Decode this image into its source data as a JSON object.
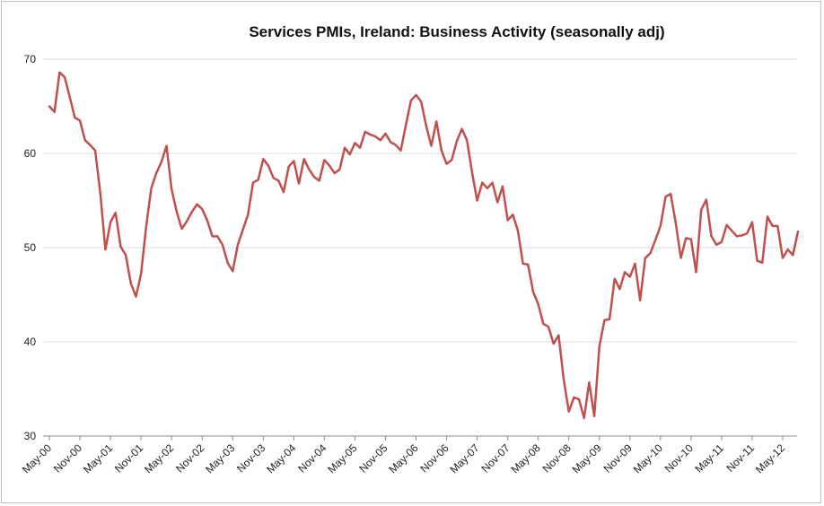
{
  "chart_data": {
    "type": "line",
    "title": "Services PMIs, Ireland: Business Activity (seasonally adj)",
    "xlabel": "",
    "ylabel": "",
    "ylim": [
      30,
      70
    ],
    "yticks": [
      30,
      40,
      50,
      60,
      70
    ],
    "xtick_labels": [
      "May-00",
      "Nov-00",
      "May-01",
      "Nov-01",
      "May-02",
      "Nov-02",
      "May-03",
      "Nov-03",
      "May-04",
      "Nov-04",
      "May-05",
      "Nov-05",
      "May-06",
      "Nov-06",
      "May-07",
      "Nov-07",
      "May-08",
      "Nov-08",
      "May-09",
      "Nov-09",
      "May-10",
      "Nov-10",
      "May-11",
      "Nov-11",
      "May-12"
    ],
    "start_month": "May-00",
    "grid": true,
    "legend": "none",
    "line_color": "#c0504d",
    "series": [
      {
        "name": "Services PMI Business Activity",
        "values": [
          65.0,
          64.4,
          68.6,
          68.1,
          66.0,
          63.8,
          63.5,
          61.4,
          60.9,
          60.3,
          55.8,
          49.8,
          52.7,
          53.7,
          50.1,
          49.2,
          46.2,
          44.8,
          47.2,
          52.2,
          56.3,
          57.9,
          59.1,
          60.8,
          56.2,
          53.8,
          52.0,
          52.8,
          53.8,
          54.6,
          54.1,
          52.9,
          51.2,
          51.2,
          50.3,
          48.4,
          47.5,
          50.3,
          51.9,
          53.5,
          56.9,
          57.2,
          59.4,
          58.7,
          57.4,
          57.1,
          55.9,
          58.6,
          59.2,
          56.8,
          59.4,
          58.3,
          57.5,
          57.1,
          59.3,
          58.7,
          57.9,
          58.3,
          60.6,
          59.9,
          61.1,
          60.6,
          62.3,
          62.0,
          61.8,
          61.4,
          62.1,
          61.2,
          60.9,
          60.3,
          63.0,
          65.6,
          66.2,
          65.5,
          62.9,
          60.8,
          63.4,
          60.3,
          58.9,
          59.3,
          61.3,
          62.6,
          61.4,
          58.0,
          55.0,
          56.9,
          56.3,
          56.9,
          54.8,
          56.5,
          52.9,
          53.5,
          51.8,
          48.3,
          48.2,
          45.3,
          44.0,
          41.9,
          41.6,
          39.8,
          40.7,
          36.0,
          32.6,
          34.1,
          33.9,
          31.9,
          35.7,
          32.1,
          39.5,
          42.3,
          42.4,
          46.7,
          45.6,
          47.4,
          46.9,
          48.3,
          44.4,
          48.9,
          49.4,
          50.8,
          52.3,
          55.4,
          55.7,
          52.6,
          48.9,
          51.0,
          50.9,
          47.4,
          54.0,
          55.1,
          51.2,
          50.3,
          50.6,
          52.4,
          51.8,
          51.2,
          51.3,
          51.5,
          52.7,
          48.6,
          48.4,
          53.3,
          52.3,
          52.3,
          48.9,
          49.8,
          49.2,
          51.7
        ]
      }
    ]
  }
}
